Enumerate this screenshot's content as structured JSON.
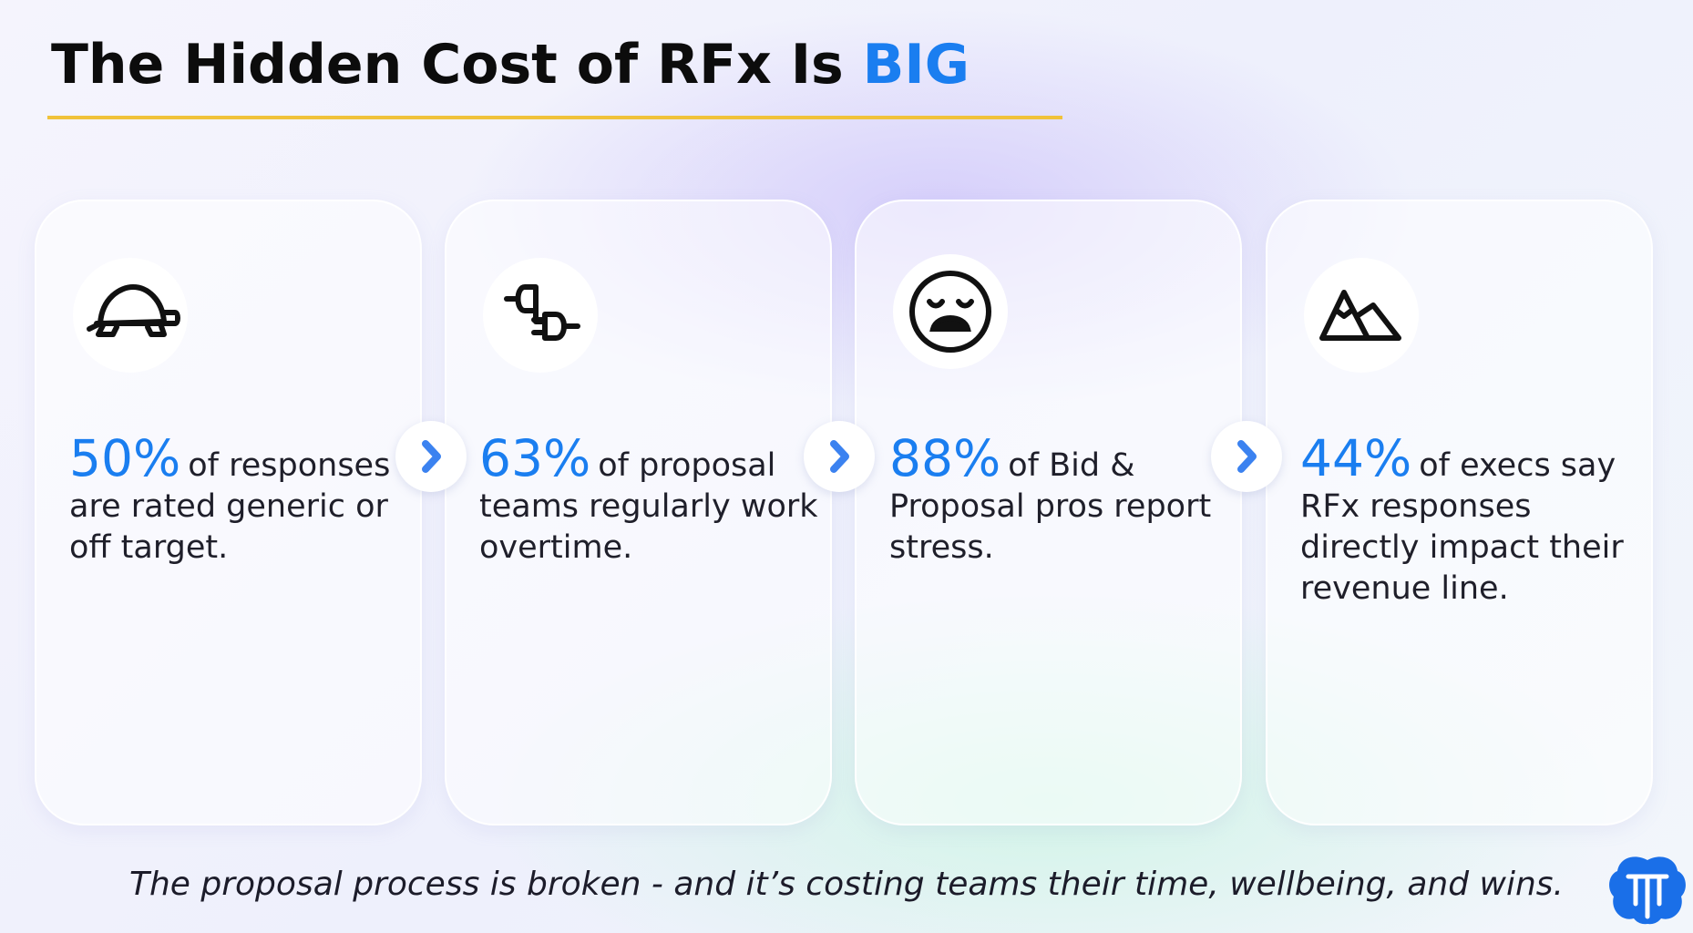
{
  "header": {
    "title": "The Hidden Cost of RFx Is",
    "highlight": "BIG"
  },
  "cards": [
    {
      "stat": "50%",
      "text": "of responses are rated generic or off target."
    },
    {
      "stat": "63%",
      "text": "of proposal teams regularly work overtime."
    },
    {
      "stat": "88%",
      "text": "of Bid & Proposal pros report stress."
    },
    {
      "stat": "44%",
      "text": "of execs say RFx responses directly impact their revenue line."
    }
  ],
  "footer": {
    "text": "The proposal process is broken - and it’s costing teams their time, wellbeing, and wins."
  }
}
